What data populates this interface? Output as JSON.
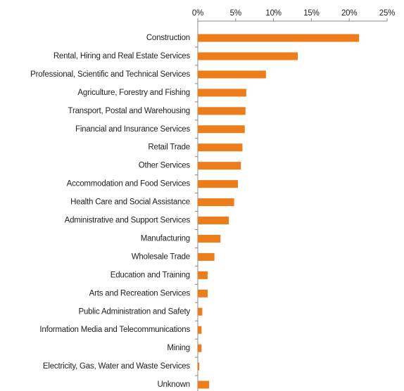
{
  "chart_data": {
    "type": "bar",
    "orientation": "horizontal",
    "categories": [
      "Construction",
      "Rental, Hiring and Real Estate Services",
      "Professional, Scientific and Technical Services",
      "Agriculture, Forestry and Fishing",
      "Transport, Postal and Warehousing",
      "Financial and Insurance Services",
      "Retail Trade",
      "Other Services",
      "Accommodation and Food Services",
      "Health Care and Social Assistance",
      "Administrative and Support Services",
      "Manufacturing",
      "Wholesale Trade",
      "Education and Training",
      "Arts and Recreation Services",
      "Public Administration and Safety",
      "Information Media and Telecommunications",
      "Mining",
      "Electricity, Gas, Water and Waste Services",
      "Unknown"
    ],
    "values": [
      21.3,
      13.2,
      9.0,
      6.4,
      6.3,
      6.2,
      5.9,
      5.7,
      5.3,
      4.8,
      4.1,
      3.0,
      2.2,
      1.3,
      1.3,
      0.6,
      0.5,
      0.5,
      0.2,
      1.5
    ],
    "color": "#ed7d1a",
    "xlim": [
      0,
      25
    ],
    "xticks": [
      {
        "value": 0,
        "label": "0%"
      },
      {
        "value": 5,
        "label": "5%"
      },
      {
        "value": 10,
        "label": "10%"
      },
      {
        "value": 15,
        "label": "15%"
      },
      {
        "value": 20,
        "label": "20%"
      },
      {
        "value": 25,
        "label": "25%"
      }
    ]
  }
}
